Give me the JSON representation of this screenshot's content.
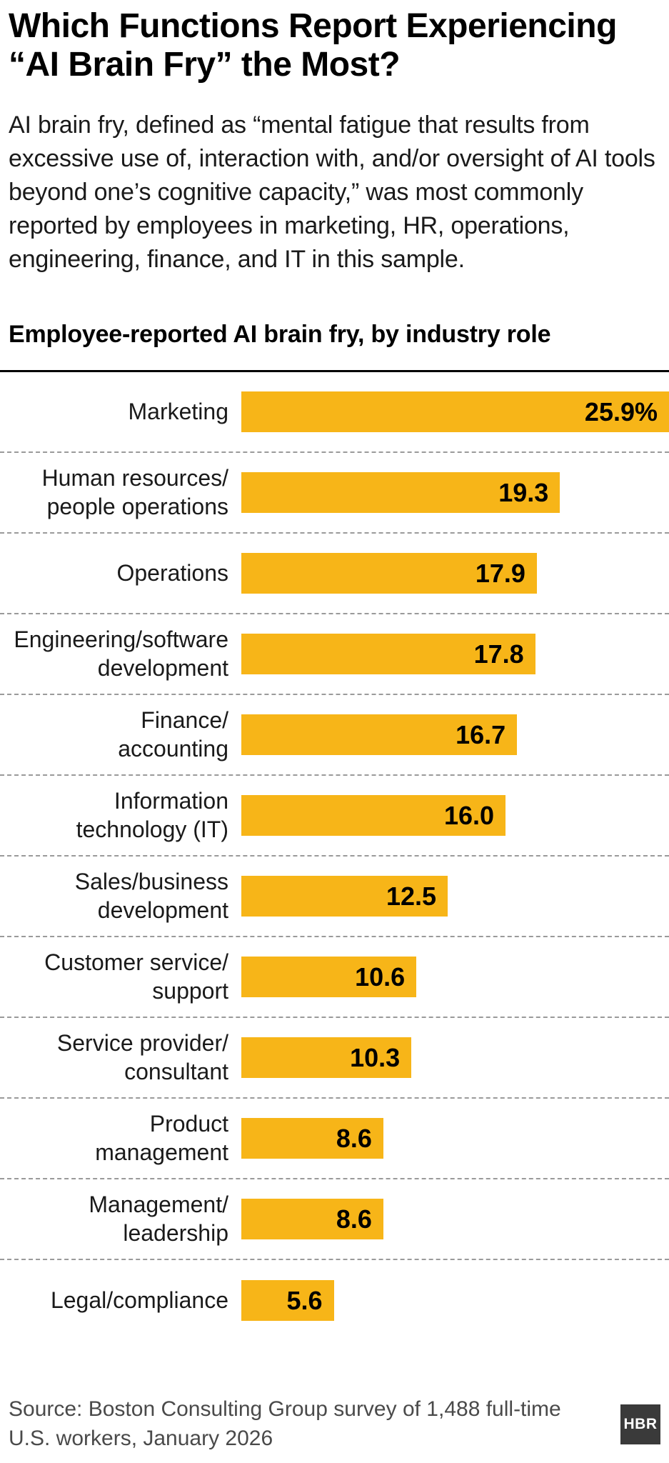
{
  "title": "Which Functions Report Experiencing “AI Brain Fry” the Most?",
  "description": "AI brain fry, defined as “mental fatigue that results from excessive use of, interaction with, and/or oversight of AI tools beyond one’s cognitive capacity,” was most commonly reported by employees in marketing, HR, operations, engineering, finance, and IT in this sample.",
  "chart_data": {
    "type": "bar",
    "orientation": "horizontal",
    "title": "Employee-reported AI brain fry, by industry role",
    "categories": [
      "Marketing",
      "Human resources/\npeople operations",
      "Operations",
      "Engineering/software\ndevelopment",
      "Finance/\naccounting",
      "Information\ntechnology (IT)",
      "Sales/business\ndevelopment",
      "Customer service/\nsupport",
      "Service provider/\nconsultant",
      "Product\nmanagement",
      "Management/\nleadership",
      "Legal/compliance"
    ],
    "values": [
      25.9,
      19.3,
      17.9,
      17.8,
      16.7,
      16.0,
      12.5,
      10.6,
      10.3,
      8.6,
      8.6,
      5.6
    ],
    "value_labels": [
      "25.9%",
      "19.3",
      "17.9",
      "17.8",
      "16.7",
      "16.0",
      "12.5",
      "10.6",
      "10.3",
      "8.6",
      "8.6",
      "5.6"
    ],
    "xlim": [
      0,
      25.9
    ],
    "bar_color": "#F7B518",
    "grid": "dashed-row-separators",
    "legend": "none"
  },
  "footer": {
    "source": "Source: Boston Consulting Group survey of 1,488 full-time U.S. workers, January 2026",
    "logo_text": "HBR"
  },
  "colors": {
    "bar": "#F7B518",
    "text": "#111111",
    "separator": "#9a9a9a",
    "source_text": "#4a4a4a",
    "logo_bg": "#3a3a3a",
    "rule": "#000000"
  }
}
